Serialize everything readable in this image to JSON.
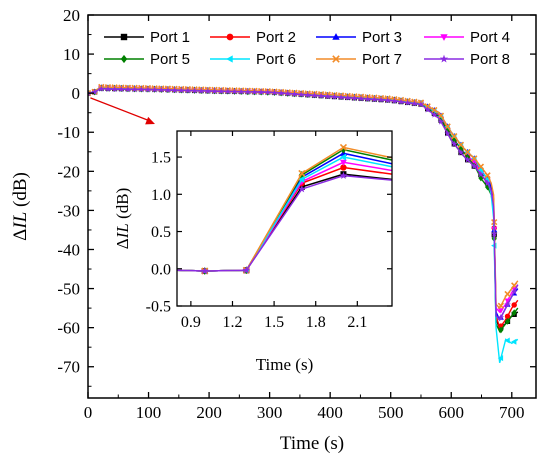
{
  "chart_data": [
    {
      "type": "line",
      "xlabel": "Time (s)",
      "ylabel_prefix": "ΔIL",
      "ylabel_suffix": " (dB)",
      "xlim": [
        0,
        740
      ],
      "ylim": [
        -78,
        20
      ],
      "xticks": [
        0,
        100,
        200,
        300,
        400,
        500,
        600,
        700
      ],
      "yticks": [
        20,
        10,
        0,
        -10,
        -20,
        -30,
        -40,
        -50,
        -60,
        -70
      ],
      "legend_location": "top-right",
      "series": [
        {
          "name": "Port 1",
          "color": "#000000",
          "marker": "square",
          "points": [
            [
              0,
              0
            ],
            [
              10,
              0.2
            ],
            [
              20,
              1.3
            ],
            [
              40,
              1.2
            ],
            [
              100,
              1.1
            ],
            [
              200,
              0.6
            ],
            [
              300,
              0.3
            ],
            [
              400,
              -0.8
            ],
            [
              500,
              -1.8
            ],
            [
              550,
              -2.8
            ],
            [
              580,
              -6
            ],
            [
              600,
              -12
            ],
            [
              620,
              -16
            ],
            [
              640,
              -19
            ],
            [
              650,
              -21
            ],
            [
              660,
              -23
            ],
            [
              666,
              -25
            ],
            [
              670,
              -29
            ],
            [
              674,
              -58
            ],
            [
              680,
              -60
            ],
            [
              690,
              -59
            ],
            [
              700,
              -57
            ],
            [
              710,
              -56
            ]
          ]
        },
        {
          "name": "Port 2",
          "color": "#ff0000",
          "marker": "circle",
          "points": [
            [
              0,
              0
            ],
            [
              10,
              0.2
            ],
            [
              20,
              1.4
            ],
            [
              40,
              1.3
            ],
            [
              100,
              1.1
            ],
            [
              200,
              0.7
            ],
            [
              300,
              0.4
            ],
            [
              400,
              -0.6
            ],
            [
              500,
              -1.6
            ],
            [
              550,
              -2.6
            ],
            [
              580,
              -5.5
            ],
            [
              600,
              -11
            ],
            [
              620,
              -15
            ],
            [
              640,
              -18
            ],
            [
              650,
              -20
            ],
            [
              660,
              -22
            ],
            [
              666,
              -24
            ],
            [
              670,
              -27
            ],
            [
              674,
              -57
            ],
            [
              680,
              -60
            ],
            [
              690,
              -58
            ],
            [
              700,
              -55
            ],
            [
              710,
              -53
            ]
          ]
        },
        {
          "name": "Port 3",
          "color": "#0000ff",
          "marker": "triangle-up",
          "points": [
            [
              0,
              0
            ],
            [
              10,
              0.2
            ],
            [
              20,
              1.5
            ],
            [
              40,
              1.4
            ],
            [
              100,
              1.2
            ],
            [
              200,
              0.8
            ],
            [
              300,
              0.4
            ],
            [
              400,
              -0.5
            ],
            [
              500,
              -1.5
            ],
            [
              550,
              -2.5
            ],
            [
              580,
              -5
            ],
            [
              600,
              -10
            ],
            [
              620,
              -14
            ],
            [
              640,
              -17
            ],
            [
              650,
              -20
            ],
            [
              660,
              -22
            ],
            [
              666,
              -24
            ],
            [
              670,
              -28
            ],
            [
              674,
              -56
            ],
            [
              680,
              -58
            ],
            [
              690,
              -55
            ],
            [
              700,
              -52
            ],
            [
              710,
              -50
            ]
          ]
        },
        {
          "name": "Port 4",
          "color": "#ff00ff",
          "marker": "triangle-down",
          "points": [
            [
              0,
              0
            ],
            [
              10,
              0.2
            ],
            [
              20,
              1.4
            ],
            [
              40,
              1.3
            ],
            [
              100,
              1.1
            ],
            [
              200,
              0.7
            ],
            [
              300,
              0.3
            ],
            [
              400,
              -0.6
            ],
            [
              500,
              -1.7
            ],
            [
              550,
              -2.7
            ],
            [
              580,
              -5.8
            ],
            [
              600,
              -11
            ],
            [
              620,
              -15
            ],
            [
              640,
              -18
            ],
            [
              650,
              -21
            ],
            [
              660,
              -23
            ],
            [
              666,
              -25
            ],
            [
              670,
              -28
            ],
            [
              674,
              -55
            ],
            [
              680,
              -56
            ],
            [
              690,
              -54
            ],
            [
              700,
              -51
            ],
            [
              710,
              -49
            ]
          ]
        },
        {
          "name": "Port 5",
          "color": "#008000",
          "marker": "diamond",
          "points": [
            [
              0,
              0
            ],
            [
              10,
              0.2
            ],
            [
              20,
              1.3
            ],
            [
              40,
              1.2
            ],
            [
              100,
              1.0
            ],
            [
              200,
              0.6
            ],
            [
              300,
              0.2
            ],
            [
              400,
              -0.7
            ],
            [
              500,
              -1.7
            ],
            [
              550,
              -2.7
            ],
            [
              580,
              -6
            ],
            [
              600,
              -11
            ],
            [
              620,
              -15
            ],
            [
              640,
              -19
            ],
            [
              650,
              -22
            ],
            [
              660,
              -24
            ],
            [
              666,
              -26
            ],
            [
              670,
              -30
            ],
            [
              674,
              -59
            ],
            [
              680,
              -61
            ],
            [
              690,
              -59
            ],
            [
              700,
              -57
            ],
            [
              710,
              -55
            ]
          ]
        },
        {
          "name": "Port 6",
          "color": "#00e5ff",
          "marker": "triangle-left",
          "points": [
            [
              0,
              0
            ],
            [
              10,
              0.2
            ],
            [
              20,
              1.5
            ],
            [
              40,
              1.4
            ],
            [
              100,
              1.2
            ],
            [
              200,
              0.8
            ],
            [
              300,
              0.4
            ],
            [
              400,
              -0.5
            ],
            [
              500,
              -1.5
            ],
            [
              550,
              -2.5
            ],
            [
              580,
              -5.2
            ],
            [
              600,
              -10
            ],
            [
              620,
              -14
            ],
            [
              640,
              -17
            ],
            [
              650,
              -20
            ],
            [
              660,
              -22
            ],
            [
              666,
              -26
            ],
            [
              670,
              -32
            ],
            [
              674,
              -60
            ],
            [
              680,
              -69
            ],
            [
              690,
              -63
            ],
            [
              700,
              -64
            ],
            [
              710,
              -63
            ]
          ]
        },
        {
          "name": "Port 7",
          "color": "#f28c28",
          "marker": "cross",
          "points": [
            [
              0,
              0
            ],
            [
              10,
              0.2
            ],
            [
              20,
              1.6
            ],
            [
              40,
              1.5
            ],
            [
              100,
              1.3
            ],
            [
              200,
              0.9
            ],
            [
              300,
              0.5
            ],
            [
              400,
              -0.4
            ],
            [
              500,
              -1.4
            ],
            [
              550,
              -2.4
            ],
            [
              580,
              -5
            ],
            [
              600,
              -10
            ],
            [
              620,
              -14
            ],
            [
              640,
              -17
            ],
            [
              650,
              -19
            ],
            [
              660,
              -21
            ],
            [
              666,
              -23
            ],
            [
              670,
              -26
            ],
            [
              674,
              -54
            ],
            [
              680,
              -55
            ],
            [
              690,
              -52
            ],
            [
              700,
              -50
            ],
            [
              710,
              -48
            ]
          ]
        },
        {
          "name": "Port 8",
          "color": "#8a2be2",
          "marker": "star",
          "points": [
            [
              0,
              0
            ],
            [
              10,
              0.2
            ],
            [
              20,
              1.1
            ],
            [
              40,
              1.0
            ],
            [
              100,
              0.9
            ],
            [
              200,
              0.5
            ],
            [
              300,
              0.2
            ],
            [
              400,
              -0.9
            ],
            [
              500,
              -1.9
            ],
            [
              550,
              -2.9
            ],
            [
              580,
              -6.5
            ],
            [
              600,
              -12
            ],
            [
              620,
              -16
            ],
            [
              640,
              -19
            ],
            [
              650,
              -21
            ],
            [
              660,
              -23
            ],
            [
              666,
              -25
            ],
            [
              670,
              -29
            ],
            [
              674,
              -57
            ],
            [
              680,
              -58
            ],
            [
              690,
              -55
            ],
            [
              700,
              -52
            ],
            [
              710,
              -49
            ]
          ]
        }
      ]
    },
    {
      "type": "line",
      "inset": true,
      "xlabel": "Time (s)",
      "ylabel_prefix": "ΔIL",
      "ylabel_suffix": " (dB)",
      "xlim": [
        0.8,
        2.35
      ],
      "ylim": [
        -0.5,
        1.85
      ],
      "xticks": [
        "0.9",
        "1.2",
        "1.5",
        "1.8",
        "2.1"
      ],
      "yticks": [
        "1.5",
        "1.0",
        "0.5",
        "0.0",
        "-0.5"
      ],
      "series": [
        {
          "name": "Port 1",
          "color": "#000000",
          "marker": "square",
          "points": [
            [
              0.8,
              -0.02
            ],
            [
              1.0,
              -0.03
            ],
            [
              1.3,
              -0.02
            ],
            [
              1.7,
              1.1
            ],
            [
              2.0,
              1.27
            ],
            [
              2.35,
              1.2
            ]
          ]
        },
        {
          "name": "Port 2",
          "color": "#ff0000",
          "marker": "circle",
          "points": [
            [
              0.8,
              -0.02
            ],
            [
              1.0,
              -0.03
            ],
            [
              1.3,
              -0.02
            ],
            [
              1.7,
              1.15
            ],
            [
              2.0,
              1.36
            ],
            [
              2.35,
              1.27
            ]
          ]
        },
        {
          "name": "Port 3",
          "color": "#0000ff",
          "marker": "triangle-up",
          "points": [
            [
              0.8,
              -0.02
            ],
            [
              1.0,
              -0.03
            ],
            [
              1.3,
              -0.02
            ],
            [
              1.7,
              1.23
            ],
            [
              2.0,
              1.55
            ],
            [
              2.35,
              1.41
            ]
          ]
        },
        {
          "name": "Port 4",
          "color": "#ff00ff",
          "marker": "triangle-down",
          "points": [
            [
              0.8,
              -0.02
            ],
            [
              1.0,
              -0.03
            ],
            [
              1.3,
              -0.02
            ],
            [
              1.7,
              1.17
            ],
            [
              2.0,
              1.43
            ],
            [
              2.35,
              1.32
            ]
          ]
        },
        {
          "name": "Port 5",
          "color": "#008000",
          "marker": "diamond",
          "points": [
            [
              0.8,
              -0.02
            ],
            [
              1.0,
              -0.03
            ],
            [
              1.3,
              -0.02
            ],
            [
              1.7,
              1.26
            ],
            [
              2.0,
              1.6
            ],
            [
              2.35,
              1.46
            ]
          ]
        },
        {
          "name": "Port 6",
          "color": "#00e5ff",
          "marker": "triangle-left",
          "points": [
            [
              0.8,
              -0.02
            ],
            [
              1.0,
              -0.03
            ],
            [
              1.3,
              -0.02
            ],
            [
              1.7,
              1.2
            ],
            [
              2.0,
              1.5
            ],
            [
              2.35,
              1.37
            ]
          ]
        },
        {
          "name": "Port 7",
          "color": "#f28c28",
          "marker": "cross",
          "points": [
            [
              0.8,
              -0.02
            ],
            [
              1.0,
              -0.03
            ],
            [
              1.3,
              -0.02
            ],
            [
              1.7,
              1.28
            ],
            [
              2.0,
              1.63
            ],
            [
              2.35,
              1.49
            ]
          ]
        },
        {
          "name": "Port 8",
          "color": "#8a2be2",
          "marker": "star",
          "points": [
            [
              0.8,
              -0.02
            ],
            [
              1.0,
              -0.03
            ],
            [
              1.3,
              -0.02
            ],
            [
              1.7,
              1.07
            ],
            [
              2.0,
              1.25
            ],
            [
              2.35,
              1.19
            ]
          ]
        }
      ]
    }
  ],
  "annotation": {
    "arrow_color": "#e00000"
  }
}
